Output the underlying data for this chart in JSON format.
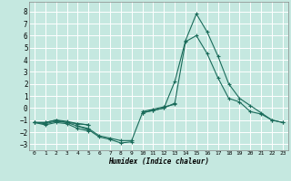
{
  "xlabel": "Humidex (Indice chaleur)",
  "xlim": [
    -0.5,
    23.5
  ],
  "ylim": [
    -3.5,
    8.8
  ],
  "yticks": [
    -3,
    -2,
    -1,
    0,
    1,
    2,
    3,
    4,
    5,
    6,
    7,
    8
  ],
  "xticks": [
    0,
    1,
    2,
    3,
    4,
    5,
    6,
    7,
    8,
    9,
    10,
    11,
    12,
    13,
    14,
    15,
    16,
    17,
    18,
    19,
    20,
    21,
    22,
    23
  ],
  "bg_color": "#c5e8e0",
  "grid_color": "#ffffff",
  "line_color": "#1a6b5a",
  "curves": [
    [
      -1.2,
      -1.4,
      -1.2,
      -1.3,
      -1.7,
      -1.9,
      null,
      null,
      null,
      null,
      null,
      null,
      null,
      null,
      null,
      null,
      null,
      null,
      null,
      null,
      null,
      null,
      null,
      null
    ],
    [
      null,
      null,
      null,
      null,
      -1.5,
      -1.8,
      -2.4,
      -2.6,
      -2.9,
      -2.8,
      null,
      null,
      null,
      null,
      null,
      null,
      null,
      null,
      null,
      null,
      null,
      null,
      null,
      null
    ],
    [
      -1.2,
      -1.3,
      -1.1,
      -1.2,
      -1.5,
      -1.7,
      -2.3,
      -2.5,
      -2.7,
      -2.7,
      -0.4,
      -0.2,
      0.0,
      2.2,
      5.6,
      7.8,
      6.3,
      4.3,
      2.0,
      0.8,
      0.2,
      -0.4,
      -1.0,
      -1.2
    ],
    [
      -1.2,
      -1.2,
      -1.0,
      -1.2,
      -1.3,
      -1.4,
      null,
      null,
      null,
      null,
      -0.4,
      -0.2,
      0.0,
      0.4,
      5.5,
      6.0,
      4.5,
      2.5,
      0.8,
      0.5,
      -0.3,
      -0.5,
      -1.0,
      -1.2
    ],
    [
      -1.2,
      -1.2,
      -1.0,
      -1.1,
      -1.3,
      -1.4,
      null,
      null,
      null,
      null,
      -0.3,
      -0.1,
      0.1,
      0.3,
      null,
      null,
      null,
      null,
      null,
      null,
      null,
      null,
      null,
      null
    ]
  ]
}
